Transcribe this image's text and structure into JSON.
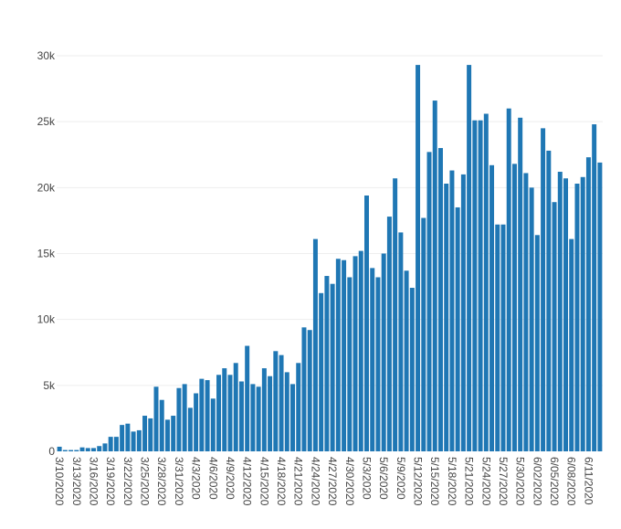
{
  "chart_data": {
    "type": "bar",
    "title": "",
    "xlabel": "",
    "ylabel": "",
    "ylim": [
      0,
      30000
    ],
    "grid": true,
    "legend": "none",
    "bar_color": "#1f77b4",
    "y_ticks": [
      0,
      5000,
      10000,
      15000,
      20000,
      25000,
      30000
    ],
    "y_tick_labels": [
      "0",
      "5k",
      "10k",
      "15k",
      "20k",
      "25k",
      "30k"
    ],
    "x_tick_labels": [
      "3/10/2020",
      "3/13/2020",
      "3/16/2020",
      "3/19/2020",
      "3/22/2020",
      "3/25/2020",
      "3/28/2020",
      "3/31/2020",
      "4/3/2020",
      "4/6/2020",
      "4/9/2020",
      "4/12/2020",
      "4/15/2020",
      "4/18/2020",
      "4/21/2020",
      "4/24/2020",
      "4/27/2020",
      "4/30/2020",
      "5/3/2020",
      "5/6/2020",
      "5/9/2020",
      "5/12/2020",
      "5/15/2020",
      "5/18/2020",
      "5/21/2020",
      "5/24/2020",
      "5/27/2020",
      "5/30/2020",
      "6/02/2020",
      "6/05/2020",
      "6/08/2020",
      "6/11/2020"
    ],
    "categories": [
      "3/10/2020",
      "3/11/2020",
      "3/12/2020",
      "3/13/2020",
      "3/14/2020",
      "3/15/2020",
      "3/16/2020",
      "3/17/2020",
      "3/18/2020",
      "3/19/2020",
      "3/20/2020",
      "3/21/2020",
      "3/22/2020",
      "3/23/2020",
      "3/24/2020",
      "3/25/2020",
      "3/26/2020",
      "3/27/2020",
      "3/28/2020",
      "3/29/2020",
      "3/30/2020",
      "3/31/2020",
      "4/1/2020",
      "4/2/2020",
      "4/3/2020",
      "4/4/2020",
      "4/5/2020",
      "4/6/2020",
      "4/7/2020",
      "4/8/2020",
      "4/9/2020",
      "4/10/2020",
      "4/11/2020",
      "4/12/2020",
      "4/13/2020",
      "4/14/2020",
      "4/15/2020",
      "4/16/2020",
      "4/17/2020",
      "4/18/2020",
      "4/19/2020",
      "4/20/2020",
      "4/21/2020",
      "4/22/2020",
      "4/23/2020",
      "4/24/2020",
      "4/25/2020",
      "4/26/2020",
      "4/27/2020",
      "4/28/2020",
      "4/29/2020",
      "4/30/2020",
      "5/1/2020",
      "5/2/2020",
      "5/3/2020",
      "5/4/2020",
      "5/5/2020",
      "5/6/2020",
      "5/7/2020",
      "5/8/2020",
      "5/9/2020",
      "5/10/2020",
      "5/11/2020",
      "5/12/2020",
      "5/13/2020",
      "5/14/2020",
      "5/15/2020",
      "5/16/2020",
      "5/17/2020",
      "5/18/2020",
      "5/19/2020",
      "5/20/2020",
      "5/21/2020",
      "5/22/2020",
      "5/23/2020",
      "5/24/2020",
      "5/25/2020",
      "5/26/2020",
      "5/27/2020",
      "5/28/2020",
      "5/29/2020",
      "5/30/2020",
      "5/31/2020",
      "6/01/2020",
      "6/02/2020",
      "6/03/2020",
      "6/04/2020",
      "6/05/2020",
      "6/06/2020",
      "6/07/2020",
      "6/08/2020",
      "6/09/2020",
      "6/10/2020",
      "6/11/2020",
      "6/12/2020",
      "6/13/2020"
    ],
    "values": [
      350,
      100,
      100,
      100,
      300,
      250,
      250,
      400,
      600,
      1100,
      1100,
      2000,
      2100,
      1500,
      1600,
      2700,
      2500,
      4900,
      3900,
      2400,
      2700,
      4800,
      5100,
      3300,
      4400,
      5500,
      5400,
      4000,
      5800,
      6300,
      5800,
      6700,
      5300,
      8000,
      5100,
      4900,
      6300,
      5700,
      7600,
      7300,
      6000,
      5100,
      6700,
      9400,
      9200,
      16100,
      12000,
      13300,
      12700,
      14600,
      14500,
      13200,
      14800,
      15200,
      19400,
      13900,
      13200,
      15000,
      17800,
      20700,
      16600,
      13700,
      12400,
      29300,
      17700,
      22700,
      26600,
      23000,
      20300,
      21300,
      18500,
      21000,
      29300,
      25100,
      25100,
      25600,
      21700,
      17200,
      17200,
      26000,
      21800,
      25300,
      21100,
      20000,
      16400,
      24500,
      22800,
      18900,
      21200,
      20700,
      16100,
      20300,
      20800,
      22300,
      24800,
      21900
    ]
  }
}
